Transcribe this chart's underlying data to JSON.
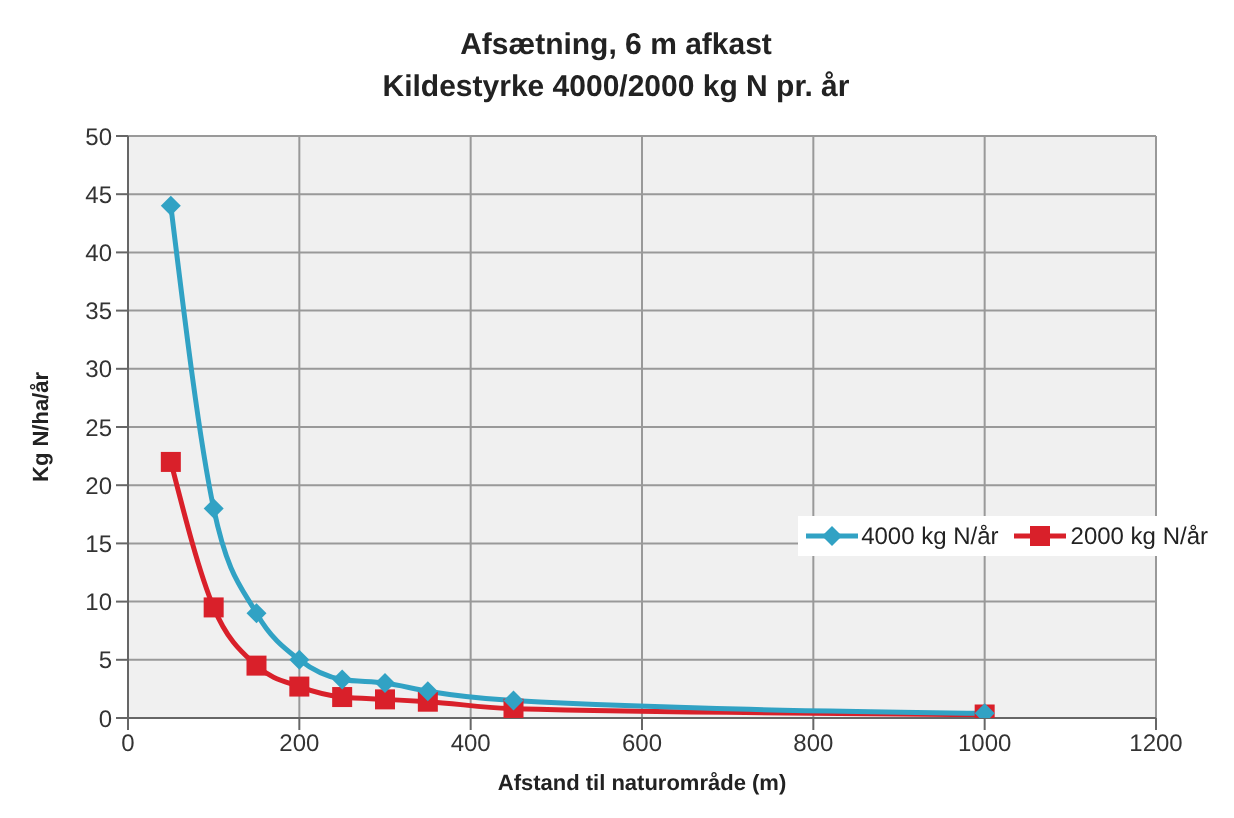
{
  "chart_data": {
    "type": "line",
    "title": "Afsætning, 6 m afkast",
    "subtitle": "Kildestyrke 4000/2000 kg N pr. år",
    "xlabel": "Afstand til naturområde (m)",
    "ylabel": "Kg N/ha/år",
    "x": [
      50,
      100,
      150,
      200,
      250,
      300,
      350,
      450,
      1000
    ],
    "series": [
      {
        "name": "4000 kg N/år",
        "color": "#31a2c4",
        "marker": "diamond",
        "values": [
          44,
          18,
          9,
          5,
          3.3,
          3,
          2.3,
          1.5,
          0.4
        ]
      },
      {
        "name": "2000 kg N/år",
        "color": "#d9202a",
        "marker": "square",
        "values": [
          22,
          9.5,
          4.5,
          2.7,
          1.8,
          1.6,
          1.4,
          0.8,
          0.3
        ]
      }
    ],
    "xlim": [
      0,
      1200
    ],
    "xticks": [
      0,
      200,
      400,
      600,
      800,
      1000,
      1200
    ],
    "ylim": [
      0,
      50
    ],
    "yticks": [
      0,
      5,
      10,
      15,
      20,
      25,
      30,
      35,
      40,
      45,
      50
    ],
    "grid": true,
    "legend": "right"
  }
}
